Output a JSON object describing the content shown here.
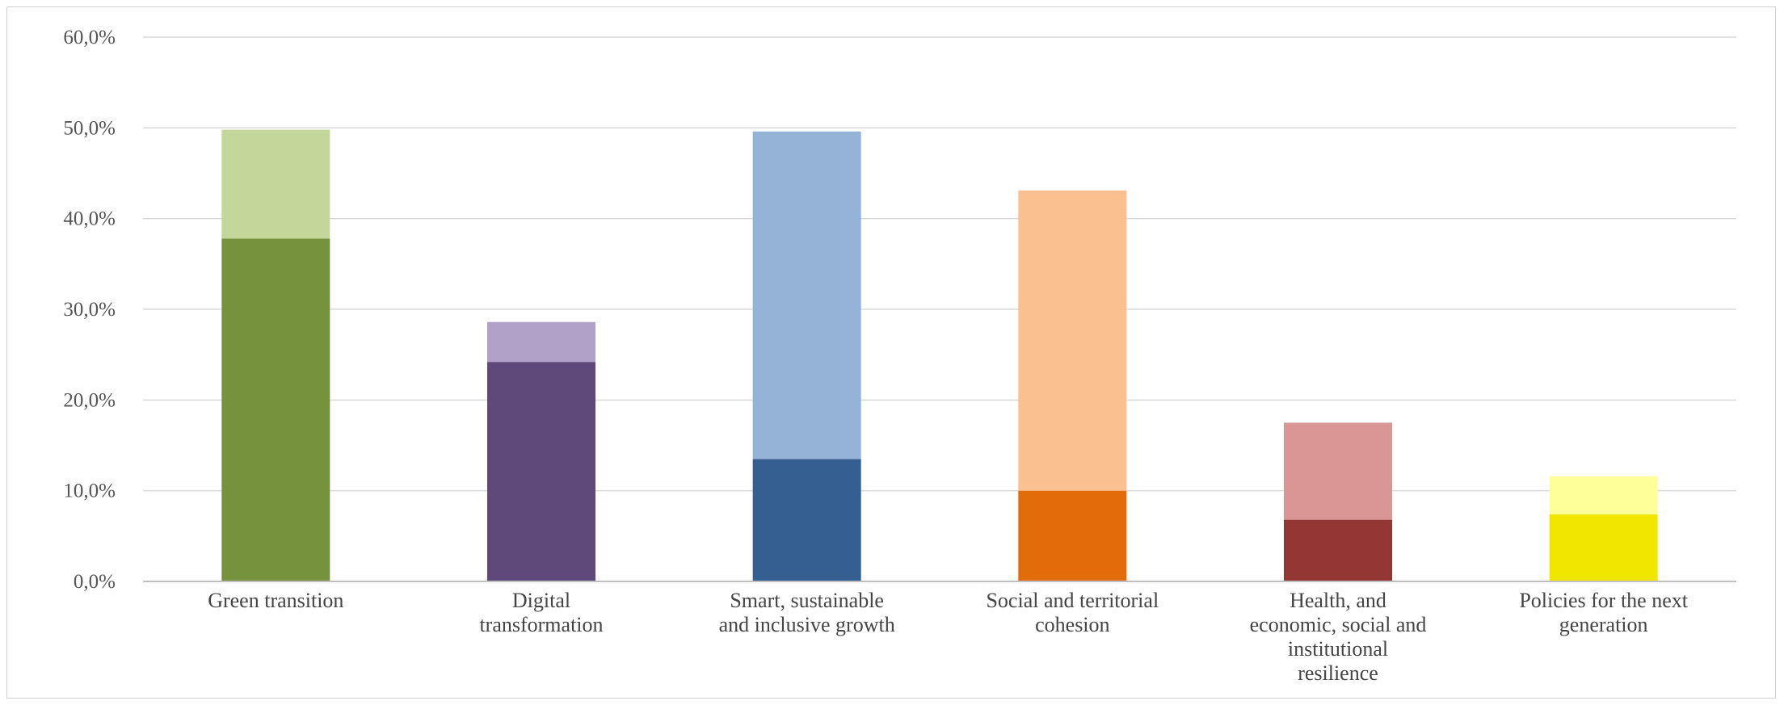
{
  "chart_data": {
    "type": "bar",
    "stacked": true,
    "title": "",
    "xlabel": "",
    "ylabel": "",
    "ylim": [
      0,
      60
    ],
    "y_ticks": [
      "0,0%",
      "10,0%",
      "20,0%",
      "30,0%",
      "40,0%",
      "50,0%",
      "60,0%"
    ],
    "grid": true,
    "legend": "none",
    "categories": [
      [
        "Green transition"
      ],
      [
        "Digital",
        "transformation"
      ],
      [
        "Smart, sustainable",
        "and inclusive growth"
      ],
      [
        "Social and territorial",
        "cohesion"
      ],
      [
        "Health, and",
        "economic, social and",
        "institutional",
        "resilience"
      ],
      [
        "Policies for the next",
        "generation"
      ]
    ],
    "series": [
      {
        "values": [
          37.8,
          24.2,
          13.5,
          10.0,
          6.8,
          7.4
        ],
        "colors": [
          "#76923c",
          "#5f497a",
          "#365f91",
          "#e36c0a",
          "#943634",
          "#f0e600"
        ]
      },
      {
        "values": [
          12.0,
          4.4,
          36.1,
          33.1,
          10.7,
          4.2
        ],
        "colors": [
          "#c4d79b",
          "#b1a0c7",
          "#95b3d7",
          "#fac090",
          "#da9694",
          "#ffff99"
        ]
      }
    ]
  }
}
